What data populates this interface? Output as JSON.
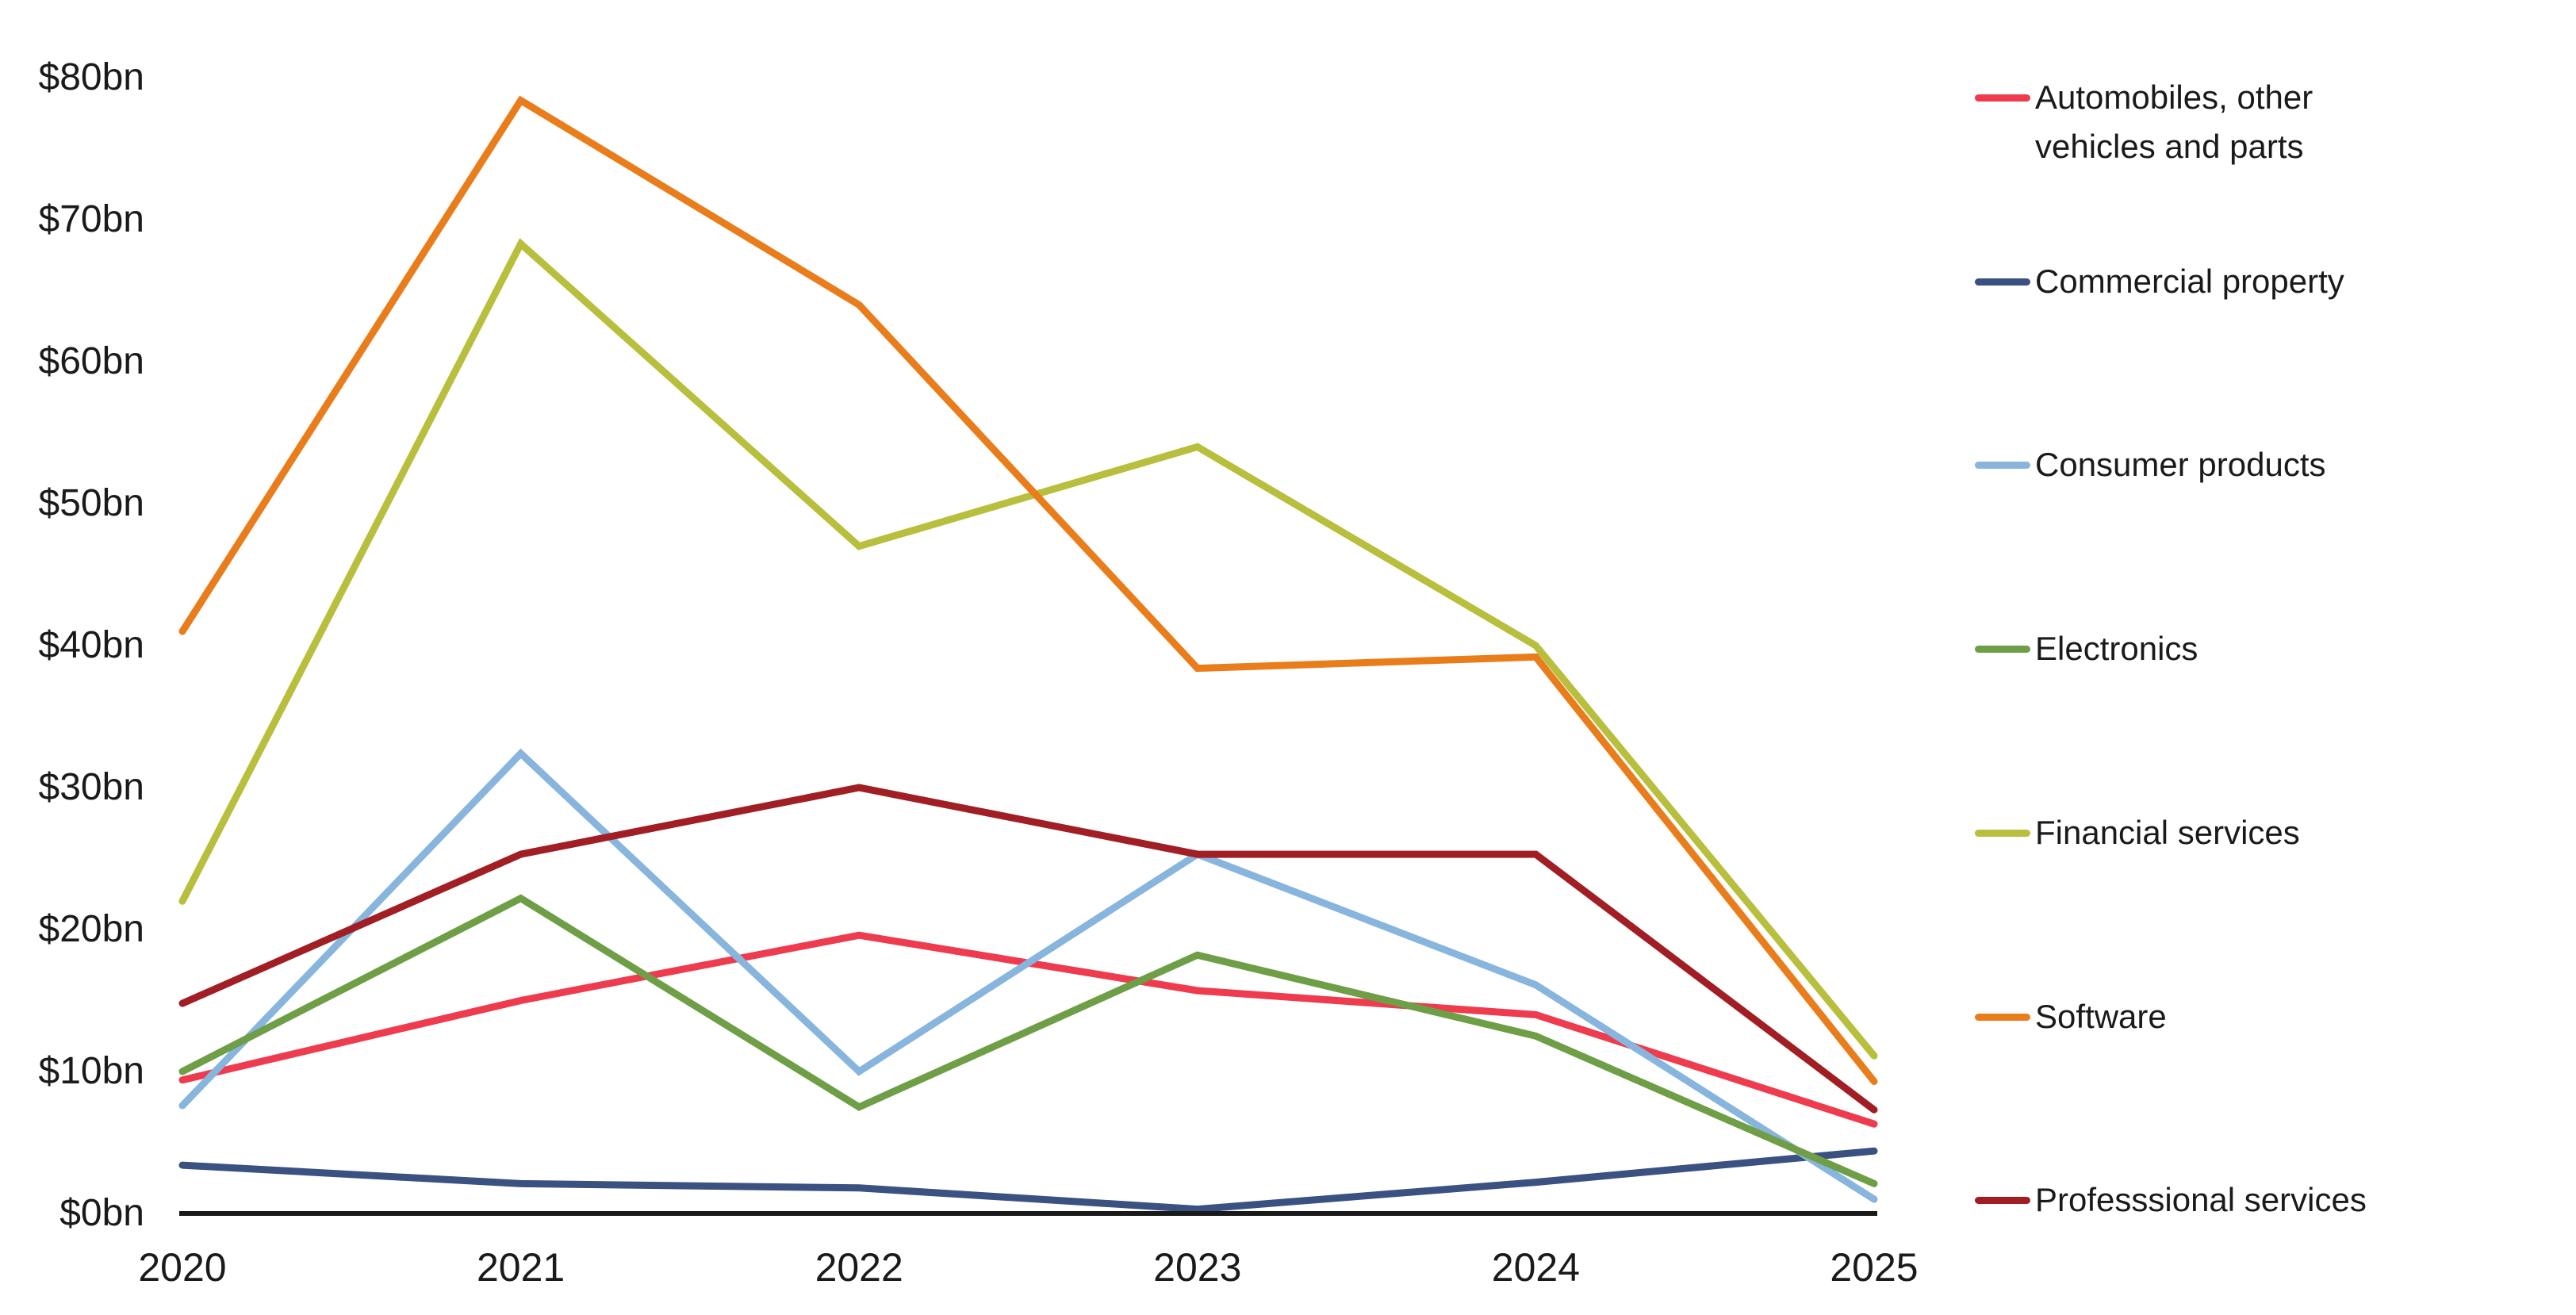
{
  "chart_data": {
    "type": "line",
    "x": [
      2020,
      2021,
      2022,
      2023,
      2024,
      2025
    ],
    "series": [
      {
        "name": "Automobiles, other vehicles and parts",
        "legend_lines": [
          "Automobiles, other",
          "vehicles and parts"
        ],
        "color": "#EE3B4E",
        "values": [
          9.4,
          15.0,
          19.6,
          15.7,
          14.0,
          6.3
        ]
      },
      {
        "name": "Commercial property",
        "legend_lines": [
          "Commercial property"
        ],
        "color": "#3A5181",
        "values": [
          3.4,
          2.1,
          1.8,
          0.3,
          2.2,
          4.4
        ]
      },
      {
        "name": "Consumer products",
        "legend_lines": [
          "Consumer products"
        ],
        "color": "#88B5DD",
        "values": [
          7.6,
          32.4,
          10.0,
          25.3,
          16.1,
          1.0
        ]
      },
      {
        "name": "Electronics",
        "legend_lines": [
          "Electronics"
        ],
        "color": "#6E9E46",
        "values": [
          10.0,
          22.2,
          7.5,
          18.2,
          12.5,
          2.1
        ]
      },
      {
        "name": "Financial services",
        "legend_lines": [
          "Financial services"
        ],
        "color": "#B7BF3D",
        "values": [
          22.0,
          68.3,
          47.0,
          54.0,
          40.0,
          11.1
        ]
      },
      {
        "name": "Software",
        "legend_lines": [
          "Software"
        ],
        "color": "#E97D1C",
        "values": [
          41.0,
          78.4,
          64.0,
          38.4,
          39.2,
          9.3
        ]
      },
      {
        "name": "Professsional services",
        "legend_lines": [
          "Professsional services"
        ],
        "color": "#A11E24",
        "values": [
          14.8,
          25.3,
          30.0,
          25.3,
          25.3,
          7.3
        ]
      }
    ],
    "y_ticks": [
      {
        "value": 0,
        "label": "$0bn"
      },
      {
        "value": 10,
        "label": "$10bn"
      },
      {
        "value": 20,
        "label": "$20bn"
      },
      {
        "value": 30,
        "label": "$30bn"
      },
      {
        "value": 40,
        "label": "$40bn"
      },
      {
        "value": 50,
        "label": "$50bn"
      },
      {
        "value": 60,
        "label": "$60bn"
      },
      {
        "value": 70,
        "label": "$70bn"
      },
      {
        "value": 80,
        "label": "$80bn"
      }
    ],
    "x_tick_labels": [
      "2020",
      "2021",
      "2022",
      "2023",
      "2024",
      "2025"
    ],
    "title": "",
    "xlabel": "",
    "ylabel": "",
    "ylim": [
      0,
      80
    ],
    "grid": false,
    "legend_position": "right",
    "axis_color": "#1A1A1A",
    "text_color": "#1A1A1A",
    "background_color": "#FFFFFF"
  }
}
